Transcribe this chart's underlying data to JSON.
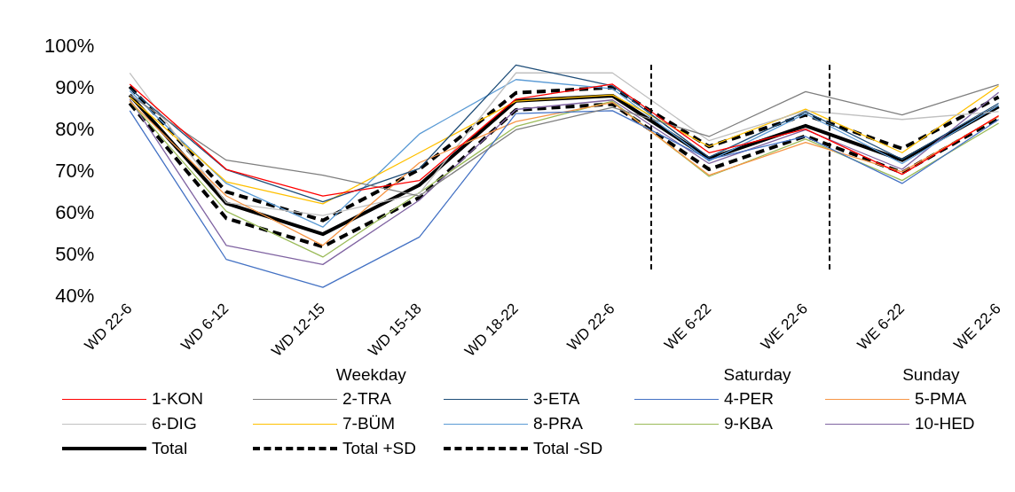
{
  "chart_data": {
    "type": "line",
    "categories": [
      "WD 22-6",
      "WD 6-12",
      "WD 12-15",
      "WD 15-18",
      "WD 18-22",
      "WD 22-6",
      "WE 6-22",
      "WE 22-6",
      "WE 6-22",
      "WE 22-6"
    ],
    "ylim": [
      40,
      100
    ],
    "yticks": [
      {
        "value": 40,
        "label": "40%"
      },
      {
        "value": 50,
        "label": "50%"
      },
      {
        "value": 60,
        "label": "60%"
      },
      {
        "value": 70,
        "label": "70%"
      },
      {
        "value": 80,
        "label": "80%"
      },
      {
        "value": 90,
        "label": "90%"
      },
      {
        "value": 100,
        "label": "100%"
      }
    ],
    "grid": false,
    "legend": "bottom",
    "marker": "none",
    "annotations": [
      "Weekday",
      "Saturday",
      "Sunday"
    ],
    "series": [
      {
        "name": "1-KON",
        "color": "#ff0000",
        "values": [
          91.1,
          70.6,
          64.2,
          67.9,
          87.5,
          91.1,
          74.6,
          80.3,
          69.4,
          83.5
        ]
      },
      {
        "name": "2-TRA",
        "color": "#7f7f7f",
        "values": [
          88.5,
          72.8,
          69.2,
          64.2,
          80.1,
          85.5,
          78.5,
          89.3,
          83.7,
          91
        ]
      },
      {
        "name": "3-ETA",
        "color": "#1f4e79",
        "values": [
          90,
          70.5,
          62.8,
          70.8,
          95.7,
          90.7,
          73.5,
          84.5,
          73,
          86.5
        ]
      },
      {
        "name": "4-PER",
        "color": "#4472c4",
        "values": [
          84.7,
          48.9,
          42.2,
          54.3,
          84,
          84.7,
          73,
          78.5,
          67.2,
          82.6
        ]
      },
      {
        "name": "5-PMA",
        "color": "#f79646",
        "values": [
          87,
          64.2,
          52.3,
          72.2,
          82.1,
          86.7,
          69.2,
          77.1,
          70,
          83.3
        ]
      },
      {
        "name": "6-DIG",
        "color": "#c0c0c0",
        "values": [
          93.8,
          62.6,
          59.5,
          64.8,
          93.8,
          93.8,
          77.5,
          84.7,
          82.6,
          84.5
        ]
      },
      {
        "name": "7-BÜM",
        "color": "#ffc000",
        "values": [
          88,
          67.6,
          62.3,
          74.6,
          87,
          88.5,
          76.1,
          85.1,
          74.6,
          90.7
        ]
      },
      {
        "name": "8-PRA",
        "color": "#5b9bd5",
        "values": [
          89.5,
          67.2,
          56.7,
          79.1,
          92.2,
          90,
          72.6,
          84,
          72,
          86
        ]
      },
      {
        "name": "9-KBA",
        "color": "#9bbb59",
        "values": [
          87,
          60.5,
          49.5,
          65,
          80.9,
          87,
          68.9,
          77.9,
          67.9,
          81.7
        ]
      },
      {
        "name": "10-HED",
        "color": "#8064a2",
        "values": [
          87.5,
          52.3,
          47.7,
          63.2,
          85,
          87.3,
          72,
          80.1,
          70.6,
          89.1
        ]
      },
      {
        "name": "Total",
        "color": "#000000",
        "line_style": "solid",
        "values": [
          88.5,
          62.4,
          55,
          66.8,
          87.1,
          88.3,
          73.2,
          81.1,
          72.8,
          85.7
        ]
      },
      {
        "name": "Total +SD",
        "color": "#000000",
        "line_style": "dashed",
        "values": [
          90.5,
          65.2,
          58.3,
          70.6,
          89,
          90.3,
          76.1,
          83.7,
          75.6,
          88
        ]
      },
      {
        "name": "Total -SD",
        "color": "#000000",
        "line_style": "dashed",
        "values": [
          86.5,
          58.8,
          52,
          63.8,
          84.9,
          86.3,
          70.6,
          78.6,
          69.8,
          82.9
        ]
      }
    ]
  }
}
